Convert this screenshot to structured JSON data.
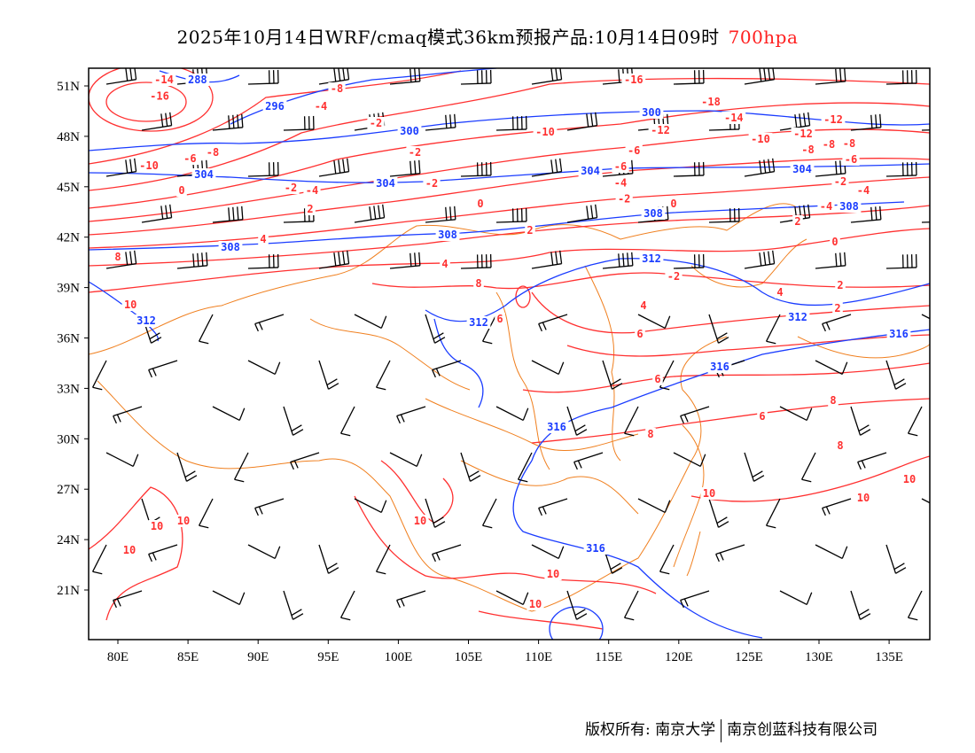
{
  "title": {
    "text": "2025年10月14日WRF/cmaq模式36km预报产品:10月14日09时",
    "level": "700hpa"
  },
  "axes": {
    "lon_ticks": [
      "80E",
      "85E",
      "90E",
      "95E",
      "100E",
      "105E",
      "110E",
      "115E",
      "120E",
      "125E",
      "130E",
      "135E"
    ],
    "lat_ticks": [
      "51N",
      "48N",
      "45N",
      "42N",
      "39N",
      "36N",
      "33N",
      "30N",
      "27N",
      "24N",
      "21N"
    ]
  },
  "height_labels": [
    "288",
    "296",
    "300",
    "300",
    "304",
    "304",
    "304",
    "304",
    "308",
    "308",
    "308",
    "308",
    "312",
    "312",
    "312",
    "312",
    "316",
    "316",
    "316",
    "316"
  ],
  "temp_labels": [
    "-14",
    "-16",
    "-6",
    "-8",
    "-10",
    "-8",
    "-4",
    "-2",
    "0",
    "-2",
    "-4",
    "2",
    "4",
    "-2",
    "-2",
    "0",
    "2",
    "4",
    "-16",
    "-18",
    "-14",
    "-12",
    "-10",
    "-12",
    "-8",
    "-6",
    "-4",
    "-2",
    "0",
    "-2",
    "0",
    "2",
    "-4",
    "-2",
    "-6",
    "-8",
    "2",
    "4",
    "6",
    "8",
    "6",
    "6",
    "8",
    "8",
    "8",
    "10",
    "10",
    "10",
    "10",
    "10",
    "10",
    "10",
    "10",
    "10",
    "10",
    "8",
    "6",
    "4",
    "2",
    "-12",
    "-8",
    "-10",
    "-6",
    "-4"
  ],
  "footer": {
    "left": "版权所有: 南京大学",
    "right": "南京创蓝科技有限公司"
  },
  "colors": {
    "temperature": "#ff3030",
    "height": "#1a3cff",
    "border": "#f08020",
    "wind": "#000000"
  }
}
